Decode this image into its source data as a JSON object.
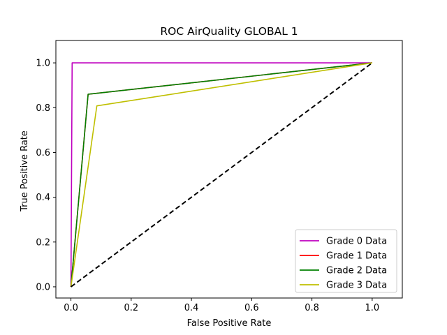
{
  "chart_data": {
    "type": "line",
    "title": "ROC AirQuality GLOBAL 1",
    "xlabel": "False Positive Rate",
    "ylabel": "True Positive Rate",
    "xlim": [
      -0.05,
      1.1
    ],
    "ylim": [
      -0.05,
      1.1
    ],
    "xticks": [
      "0.0",
      "0.2",
      "0.4",
      "0.6",
      "0.8",
      "1.0"
    ],
    "yticks": [
      "0.0",
      "0.2",
      "0.4",
      "0.6",
      "0.8",
      "1.0"
    ],
    "grid": false,
    "legend_position": "lower-right",
    "series": [
      {
        "name": "Grade 0 Data",
        "color": "#bf00bf",
        "x": [
          0,
          0.004,
          1
        ],
        "y": [
          0,
          1.0,
          1.0
        ]
      },
      {
        "name": "Grade 1 Data",
        "color": "#ff0000",
        "x": [
          0,
          0.057,
          1
        ],
        "y": [
          0,
          0.86,
          1.0
        ]
      },
      {
        "name": "Grade 2 Data",
        "color": "#008000",
        "x": [
          0,
          0.057,
          1
        ],
        "y": [
          0,
          0.86,
          1.0
        ]
      },
      {
        "name": "Grade 3 Data",
        "color": "#bfbf00",
        "x": [
          0,
          0.086,
          1
        ],
        "y": [
          0,
          0.808,
          1.0
        ]
      }
    ],
    "reference_line": {
      "color": "#000000",
      "style": "dashed",
      "x": [
        0,
        1
      ],
      "y": [
        0,
        1
      ]
    }
  }
}
